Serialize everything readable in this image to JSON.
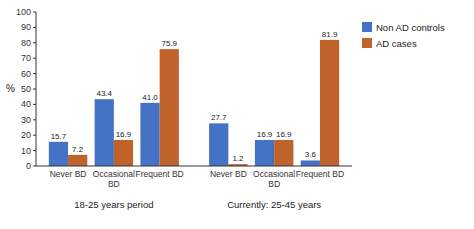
{
  "chart_data": {
    "type": "bar",
    "ylabel": "%",
    "categories": [
      "Never BD",
      "Occasional\nBD",
      "Frequent BD",
      "Never BD",
      "Occasional\nBD",
      "Frequent BD"
    ],
    "series": [
      {
        "name": "Non AD controls",
        "color": "#4472C4",
        "values": [
          15.7,
          43.4,
          41.0,
          27.7,
          16.9,
          3.6
        ],
        "value_labels": [
          "15.7",
          "43.4",
          "41.0",
          "27.7",
          "16.9",
          "3.6"
        ]
      },
      {
        "name": "AD cases",
        "color": "#C0622C",
        "values": [
          7.2,
          16.9,
          75.9,
          1.2,
          16.9,
          81.9
        ],
        "value_labels": [
          "7.2",
          "16.9",
          "75.9",
          "1.2",
          "16.9",
          "81.9"
        ]
      }
    ],
    "annotations": [
      "18-25 years period",
      "Currently: 25-45 years"
    ],
    "ylim": [
      0,
      100
    ],
    "yticks": [
      0,
      10,
      20,
      30,
      40,
      50,
      60,
      70,
      80,
      90,
      100
    ],
    "grid": false,
    "legend": "right",
    "data_labels": true
  }
}
